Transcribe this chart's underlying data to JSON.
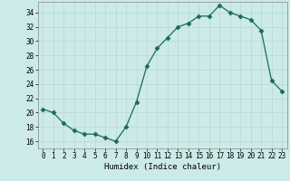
{
  "x": [
    0,
    1,
    2,
    3,
    4,
    5,
    6,
    7,
    8,
    9,
    10,
    11,
    12,
    13,
    14,
    15,
    16,
    17,
    18,
    19,
    20,
    21,
    22,
    23
  ],
  "y": [
    20.5,
    20.0,
    18.5,
    17.5,
    17.0,
    17.0,
    16.5,
    16.0,
    18.0,
    21.5,
    26.5,
    29.0,
    30.5,
    32.0,
    32.5,
    33.5,
    33.5,
    35.0,
    34.0,
    33.5,
    33.0,
    31.5,
    24.5,
    23.0
  ],
  "line_color": "#1a6b5a",
  "marker": "D",
  "markersize": 2.5,
  "linewidth": 0.9,
  "bg_color": "#cceae7",
  "grid_color": "#b8d8d5",
  "xlabel": "Humidex (Indice chaleur)",
  "xlabel_fontsize": 6.5,
  "tick_fontsize": 5.5,
  "ylim": [
    15,
    35.5
  ],
  "yticks": [
    16,
    18,
    20,
    22,
    24,
    26,
    28,
    30,
    32,
    34
  ],
  "xlim": [
    -0.5,
    23.5
  ],
  "xticks": [
    0,
    1,
    2,
    3,
    4,
    5,
    6,
    7,
    8,
    9,
    10,
    11,
    12,
    13,
    14,
    15,
    16,
    17,
    18,
    19,
    20,
    21,
    22,
    23
  ]
}
